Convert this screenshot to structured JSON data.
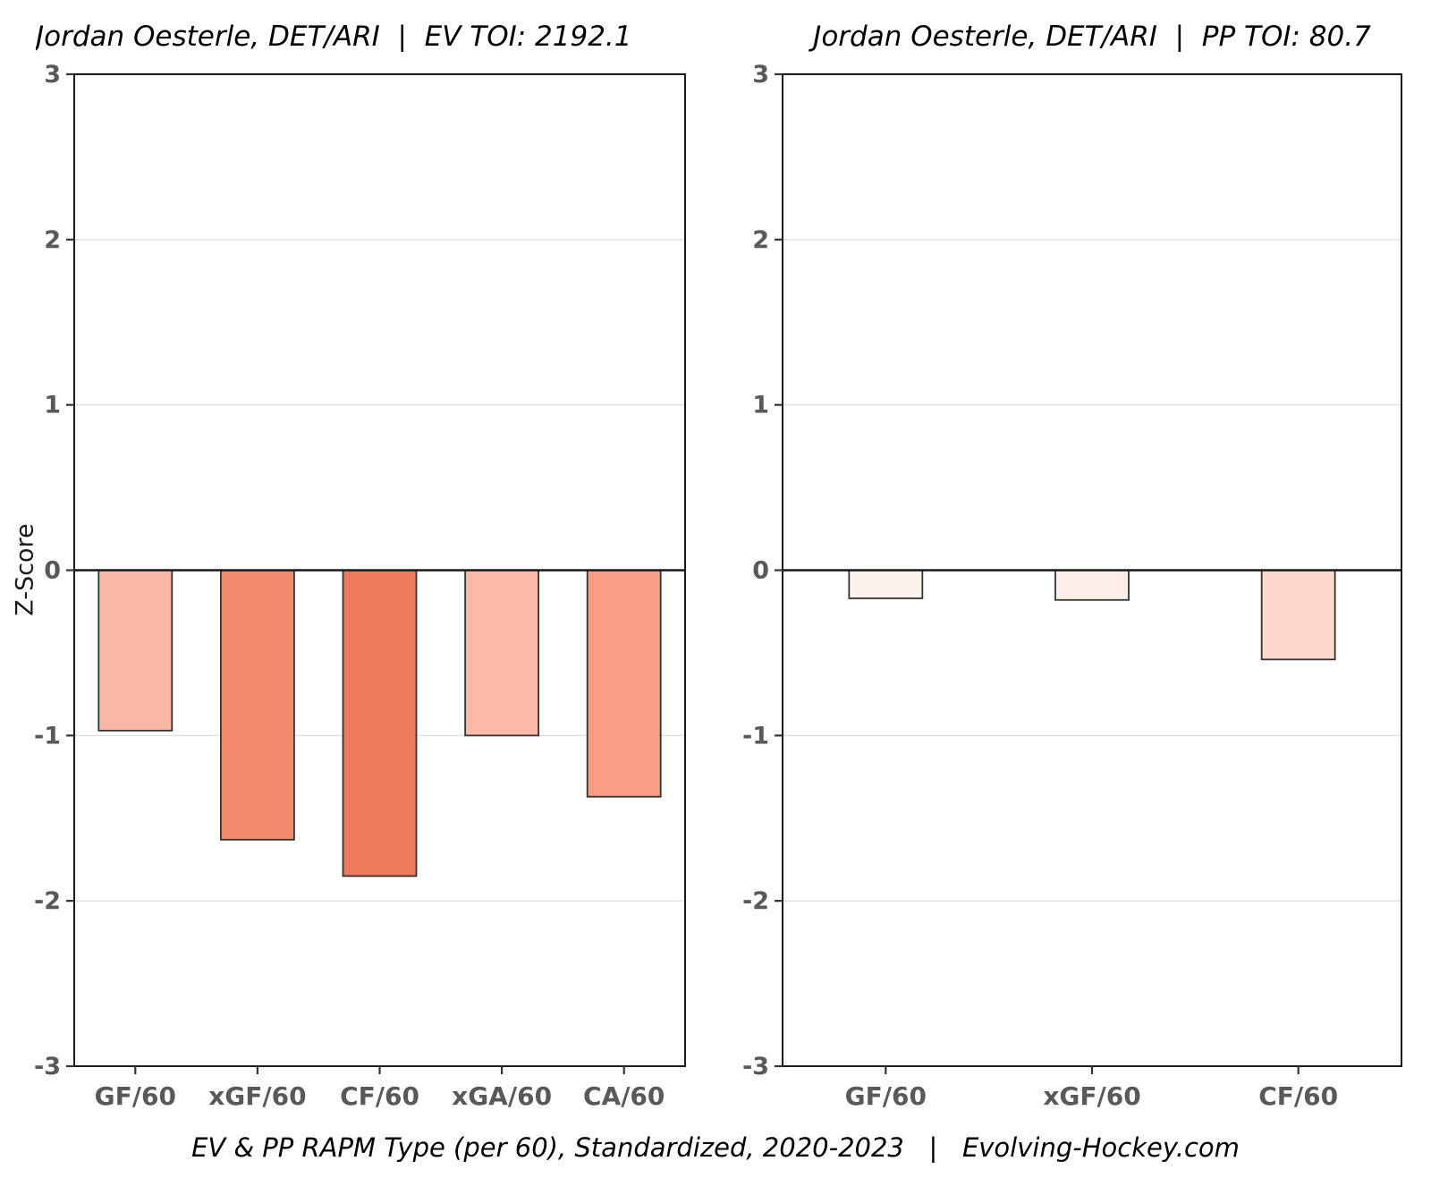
{
  "figure": {
    "title_left": "Jordan Oesterle, DET/ARI  |  EV TOI: 2192.1",
    "title_right": "Jordan Oesterle, DET/ARI  |  PP TOI: 80.7",
    "ylabel": "Z-Score",
    "caption": "EV & PP RAPM Type (per 60), Standardized, 2020-2023   |   Evolving-Hockey.com"
  },
  "colors": {
    "panel_border": "#1a1a1a",
    "zero_line": "#1a1a1a",
    "gridline": "#e0e0e0",
    "tick_mark": "#333333",
    "tick_label": "#595959",
    "bar_stroke": "#333333",
    "text": "#000000"
  },
  "chart_data": [
    {
      "id": "ev",
      "type": "bar",
      "title": "Jordan Oesterle, DET/ARI  |  EV TOI: 2192.1",
      "categories": [
        "GF/60",
        "xGF/60",
        "CF/60",
        "xGA/60",
        "CA/60"
      ],
      "values": [
        -0.97,
        -1.63,
        -1.85,
        -1.0,
        -1.37
      ],
      "bar_colors": [
        "#FBB8A5",
        "#F28A6D",
        "#EE7A5D",
        "#FCB9A6",
        "#F99D85"
      ],
      "xlabel": "",
      "ylabel": "Z-Score",
      "ylim": [
        -3,
        3
      ],
      "yticks": [
        3,
        2,
        1,
        0,
        -1,
        -2,
        -3
      ],
      "grid": true,
      "legend": false
    },
    {
      "id": "pp",
      "type": "bar",
      "title": "Jordan Oesterle, DET/ARI  |  PP TOI: 80.7",
      "categories": [
        "GF/60",
        "xGF/60",
        "CF/60"
      ],
      "values": [
        -0.17,
        -0.18,
        -0.54
      ],
      "bar_colors": [
        "#FDF1ED",
        "#FCEFE9",
        "#FCD9CB"
      ],
      "xlabel": "",
      "ylabel": "Z-Score",
      "ylim": [
        -3,
        3
      ],
      "yticks": [
        3,
        2,
        1,
        0,
        -1,
        -2,
        -3
      ],
      "grid": true,
      "legend": false
    }
  ]
}
